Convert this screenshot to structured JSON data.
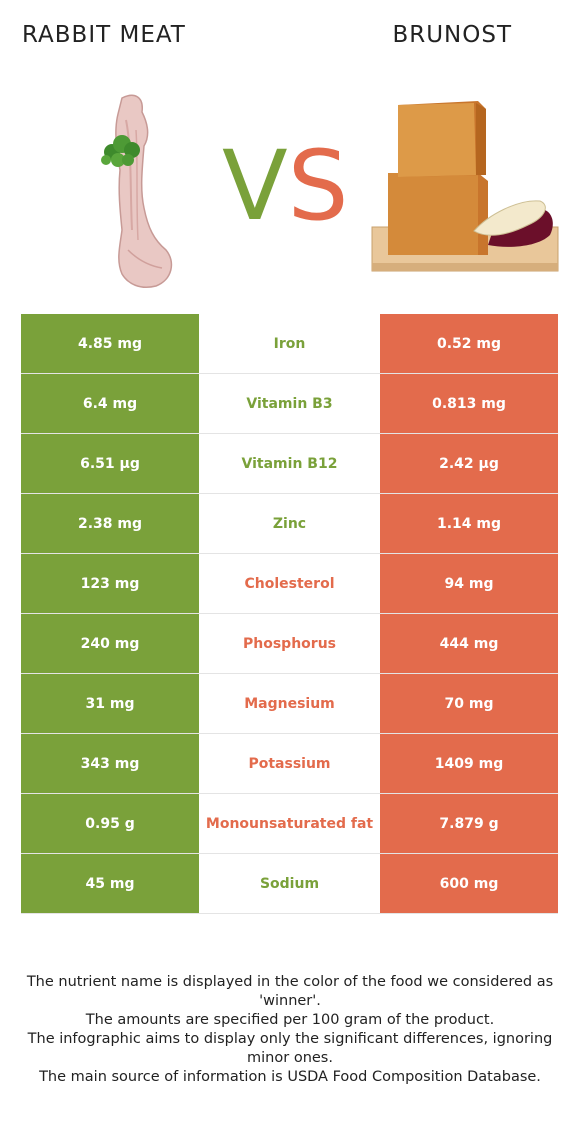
{
  "header": {
    "left_food": "RABBIT MEAT",
    "right_food": "BRUNOST",
    "vs_v": "V",
    "vs_s": "S"
  },
  "colors": {
    "left_accent": "#7aa13a",
    "right_accent": "#e36b4c"
  },
  "rows": [
    {
      "left": "4.85 mg",
      "nutrient": "Iron",
      "right": "0.52 mg",
      "winner": "left"
    },
    {
      "left": "6.4 mg",
      "nutrient": "Vitamin B3",
      "right": "0.813 mg",
      "winner": "left"
    },
    {
      "left": "6.51 µg",
      "nutrient": "Vitamin B12",
      "right": "2.42 µg",
      "winner": "left"
    },
    {
      "left": "2.38 mg",
      "nutrient": "Zinc",
      "right": "1.14 mg",
      "winner": "left"
    },
    {
      "left": "123 mg",
      "nutrient": "Cholesterol",
      "right": "94 mg",
      "winner": "right"
    },
    {
      "left": "240 mg",
      "nutrient": "Phosphorus",
      "right": "444 mg",
      "winner": "right"
    },
    {
      "left": "31 mg",
      "nutrient": "Magnesium",
      "right": "70 mg",
      "winner": "right"
    },
    {
      "left": "343 mg",
      "nutrient": "Potassium",
      "right": "1409 mg",
      "winner": "right"
    },
    {
      "left": "0.95 g",
      "nutrient": "Monounsaturated fat",
      "right": "7.879 g",
      "winner": "right"
    },
    {
      "left": "45 mg",
      "nutrient": "Sodium",
      "right": "600 mg",
      "winner": "left"
    }
  ],
  "footnote": {
    "line1": "The nutrient name is displayed in the color of the food we considered as 'winner'.",
    "line2": "The amounts are specified per 100 gram of the product.",
    "line3": "The infographic aims to display only the significant differences, ignoring minor ones.",
    "line4": "The main source of information is USDA Food Composition Database."
  }
}
